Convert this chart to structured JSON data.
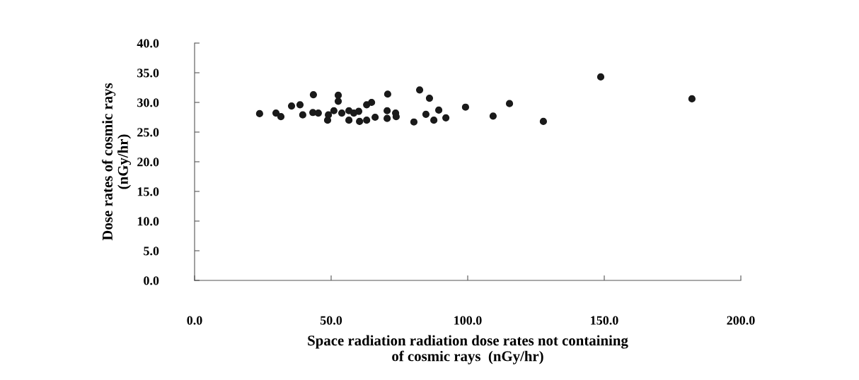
{
  "chart_data": {
    "type": "scatter",
    "xlabel": "Space radiation radiation dose rates not containing\nof cosmic rays  (nGy/hr)",
    "ylabel": "Dose rates of cosmic rays\n(nGy/hr)",
    "xlim": [
      0,
      200
    ],
    "ylim": [
      0,
      40
    ],
    "xticks": [
      {
        "value": 0,
        "label": "0.0"
      },
      {
        "value": 50,
        "label": "50.0"
      },
      {
        "value": 100,
        "label": "100.0"
      },
      {
        "value": 150,
        "label": "150.0"
      },
      {
        "value": 200,
        "label": "200.0"
      }
    ],
    "yticks": [
      {
        "value": 0,
        "label": "0.0"
      },
      {
        "value": 5,
        "label": "5.0"
      },
      {
        "value": 10,
        "label": "10.0"
      },
      {
        "value": 15,
        "label": "15.0"
      },
      {
        "value": 20,
        "label": "20.0"
      },
      {
        "value": 25,
        "label": "25.0"
      },
      {
        "value": 30,
        "label": "30.0"
      },
      {
        "value": 35,
        "label": "35.0"
      },
      {
        "value": 40,
        "label": "40.0"
      }
    ],
    "grid": false,
    "legend": false,
    "marker": "circle",
    "series": [
      {
        "color": "#1a1a1a",
        "x": [
          23.8,
          29.8,
          31.6,
          35.5,
          38.6,
          43.5,
          39.6,
          43.3,
          45.3,
          49.0,
          48.7,
          51.0,
          52.6,
          52.6,
          53.9,
          56.5,
          58.3,
          60.1,
          56.5,
          60.4,
          63.0,
          63.0,
          64.8,
          70.7,
          70.5,
          66.1,
          70.5,
          73.6,
          73.8,
          82.4,
          86.0,
          84.7,
          89.4,
          80.3,
          87.6,
          92.0,
          99.2,
          115.3,
          109.3,
          127.7,
          148.7,
          182.1
        ],
        "values": [
          28.1,
          28.2,
          27.6,
          29.4,
          29.6,
          31.3,
          27.9,
          28.3,
          28.2,
          27.9,
          27.0,
          28.6,
          31.2,
          30.2,
          28.2,
          28.6,
          28.2,
          28.5,
          27.0,
          26.8,
          27.0,
          29.6,
          30.0,
          31.4,
          28.6,
          27.5,
          27.3,
          28.2,
          27.6,
          32.1,
          30.7,
          28.0,
          28.7,
          26.7,
          27.0,
          27.4,
          29.2,
          29.8,
          27.7,
          26.8,
          34.3,
          30.6
        ]
      }
    ]
  }
}
